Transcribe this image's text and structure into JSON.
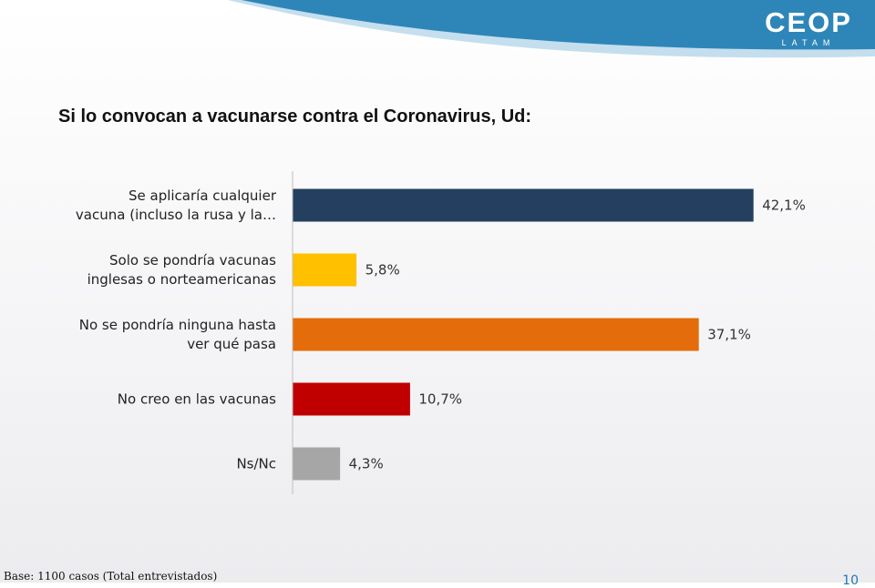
{
  "header": {
    "logo_main": "CEOP",
    "logo_sub": "LATAM"
  },
  "footer": {
    "base_note": "Base: 1100 casos (Total entrevistados)",
    "page_number": "10"
  },
  "colors": {
    "banner": "#2e86b8",
    "banner_light": "#9fc9e3",
    "axis": "#bfbfbf"
  },
  "chart_data": {
    "type": "bar",
    "orientation": "horizontal",
    "title": "Si lo convocan a vacunarse contra el Coronavirus, Ud:",
    "categories": [
      [
        "Se aplicaría cualquier",
        "vacuna (incluso la rusa y la…"
      ],
      [
        "Solo se pondría vacunas",
        "inglesas o norteamericanas"
      ],
      [
        "No se pondría ninguna hasta",
        "ver qué pasa"
      ],
      [
        "No creo en las vacunas"
      ],
      [
        "Ns/Nc"
      ]
    ],
    "values": [
      42.1,
      5.8,
      37.1,
      10.7,
      4.3
    ],
    "value_labels": [
      "42,1%",
      "5,8%",
      "37,1%",
      "10,7%",
      "4,3%"
    ],
    "bar_colors": [
      "#243f60",
      "#ffc000",
      "#e46c0a",
      "#c00000",
      "#a6a6a6"
    ],
    "xlim": [
      0,
      45
    ],
    "grid": false,
    "legend": "none"
  }
}
